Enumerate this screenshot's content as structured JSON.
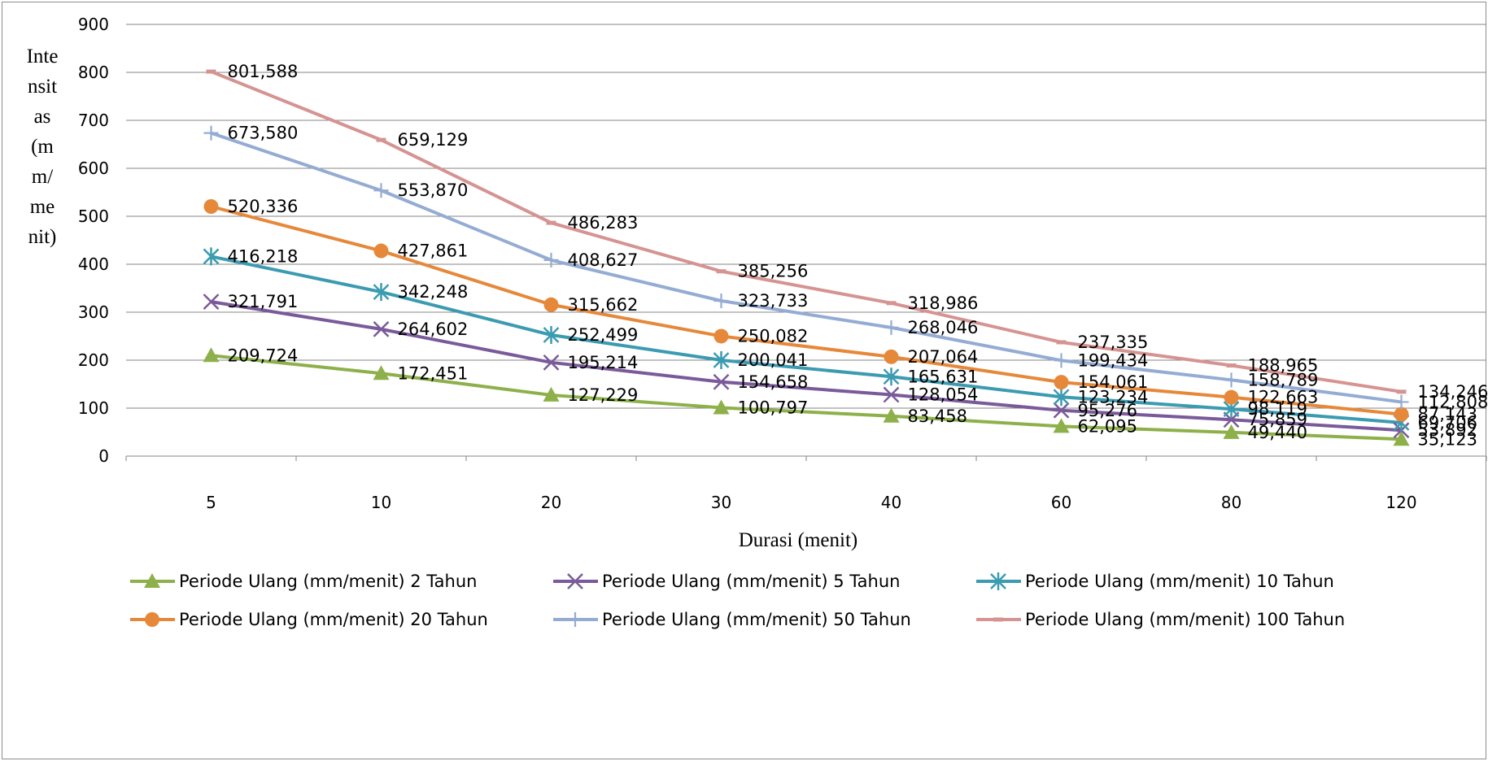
{
  "chart_data": {
    "type": "line",
    "title": "",
    "xlabel": "Durasi (menit)",
    "ylabel_lines": [
      "Inte",
      "nsit",
      "as",
      "(m",
      "m/",
      "me",
      "nit)"
    ],
    "categories": [
      "5",
      "10",
      "20",
      "30",
      "40",
      "60",
      "80",
      "120"
    ],
    "ylim": [
      0,
      900
    ],
    "yticks": [
      "0",
      "100",
      "200",
      "300",
      "400",
      "500",
      "600",
      "700",
      "800",
      "900"
    ],
    "grid": true,
    "legend_position": "bottom",
    "series": [
      {
        "name": "Periode Ulang (mm/menit) 2 Tahun",
        "color": "#8eb04a",
        "marker": "triangle",
        "values": [
          209.724,
          172.451,
          127.229,
          100.797,
          83.458,
          62.095,
          49.44,
          35.123
        ],
        "labels": [
          "209,724",
          "172,451",
          "127,229",
          "100,797",
          "83,458",
          "62,095",
          "49,440",
          "35,123"
        ]
      },
      {
        "name": "Periode Ulang (mm/menit) 5 Tahun",
        "color": "#7a5a9a",
        "marker": "x",
        "values": [
          321.791,
          264.602,
          195.214,
          154.658,
          128.054,
          95.276,
          75.859,
          53.892
        ],
        "labels": [
          "321,791",
          "264,602",
          "195,214",
          "154,658",
          "128,054",
          "95,276",
          "75,859",
          "53,892"
        ]
      },
      {
        "name": "Periode Ulang (mm/menit) 10 Tahun",
        "color": "#3b9bb1",
        "marker": "star",
        "values": [
          416.218,
          342.248,
          252.499,
          200.041,
          165.631,
          123.234,
          98.119,
          69.706
        ],
        "labels": [
          "416,218",
          "342,248",
          "252,499",
          "200,041",
          "165,631",
          "123,234",
          "98,119",
          "69,706"
        ]
      },
      {
        "name": "Periode Ulang (mm/menit) 20 Tahun",
        "color": "#e6883a",
        "marker": "circle",
        "values": [
          520.336,
          427.861,
          315.662,
          250.082,
          207.064,
          154.061,
          122.663,
          87.143
        ],
        "labels": [
          "520,336",
          "427,861",
          "315,662",
          "250,082",
          "207,064",
          "154,061",
          "122,663",
          "87,143"
        ]
      },
      {
        "name": "Periode Ulang (mm/menit) 50 Tahun",
        "color": "#94acd4",
        "marker": "plus",
        "values": [
          673.58,
          553.87,
          408.627,
          323.733,
          268.046,
          199.434,
          158.789,
          112.808
        ],
        "labels": [
          "673,580",
          "553,870",
          "408,627",
          "323,733",
          "268,046",
          "199,434",
          "158,789",
          "112,808"
        ]
      },
      {
        "name": "Periode Ulang (mm/menit) 100 Tahun",
        "color": "#d59391",
        "marker": "dash",
        "values": [
          801.588,
          659.129,
          486.283,
          385.256,
          318.986,
          237.335,
          188.965,
          134.246
        ],
        "labels": [
          "801,588",
          "659,129",
          "486,283",
          "385,256",
          "318,986",
          "237,335",
          "188,965",
          "134,246"
        ]
      }
    ]
  }
}
